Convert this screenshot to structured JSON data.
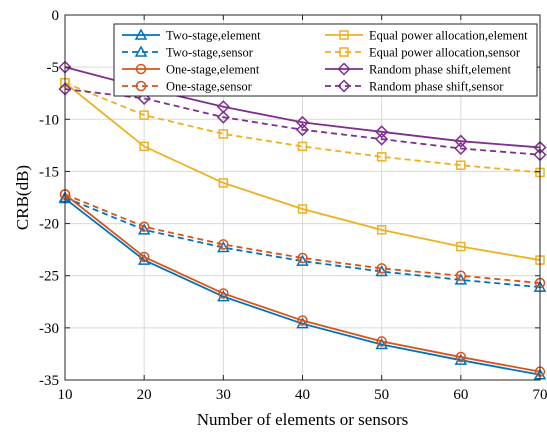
{
  "chart_data": {
    "type": "line",
    "xlabel": "Number of elements or sensors",
    "ylabel": "CRB(dB)",
    "x": [
      10,
      20,
      30,
      40,
      50,
      60,
      70
    ],
    "xlim": [
      10,
      70
    ],
    "ylim": [
      -35,
      0
    ],
    "xticks": [
      10,
      20,
      30,
      40,
      50,
      60,
      70
    ],
    "yticks": [
      0,
      -5,
      -10,
      -15,
      -20,
      -25,
      -30,
      -35
    ],
    "grid": true,
    "legend_position": "top-right",
    "series": [
      {
        "name": "Two-stage,element",
        "color": "#0072BD",
        "dash": "solid",
        "marker": "triangle",
        "values": [
          -17.6,
          -23.5,
          -27.0,
          -29.6,
          -31.6,
          -33.1,
          -34.5
        ]
      },
      {
        "name": "Two-stage,sensor",
        "color": "#0072BD",
        "dash": "dashed",
        "marker": "triangle",
        "values": [
          -17.5,
          -20.6,
          -22.3,
          -23.6,
          -24.6,
          -25.4,
          -26.1
        ]
      },
      {
        "name": "One-stage,element",
        "color": "#D95319",
        "dash": "solid",
        "marker": "circle",
        "values": [
          -17.2,
          -23.2,
          -26.7,
          -29.3,
          -31.3,
          -32.8,
          -34.2
        ]
      },
      {
        "name": "One-stage,sensor",
        "color": "#D95319",
        "dash": "dashed",
        "marker": "circle",
        "values": [
          -17.2,
          -20.3,
          -22.0,
          -23.3,
          -24.3,
          -25.0,
          -25.7
        ]
      },
      {
        "name": "Equal power allocation,element",
        "color": "#EDB120",
        "dash": "solid",
        "marker": "square",
        "values": [
          -6.5,
          -12.6,
          -16.1,
          -18.6,
          -20.6,
          -22.2,
          -23.5
        ]
      },
      {
        "name": "Equal power allocation,sensor",
        "color": "#EDB120",
        "dash": "dashed",
        "marker": "square",
        "values": [
          -6.5,
          -9.6,
          -11.4,
          -12.6,
          -13.6,
          -14.4,
          -15.1
        ]
      },
      {
        "name": "Random phase shift,element",
        "color": "#7E2F8E",
        "dash": "solid",
        "marker": "diamond",
        "values": [
          -5.0,
          -7.0,
          -8.8,
          -10.3,
          -11.2,
          -12.1,
          -12.7
        ]
      },
      {
        "name": "Random phase shift,sensor",
        "color": "#7E2F8E",
        "dash": "dashed",
        "marker": "diamond",
        "values": [
          -7.1,
          -8.0,
          -9.8,
          -11.0,
          -11.9,
          -12.8,
          -13.4
        ]
      }
    ]
  }
}
